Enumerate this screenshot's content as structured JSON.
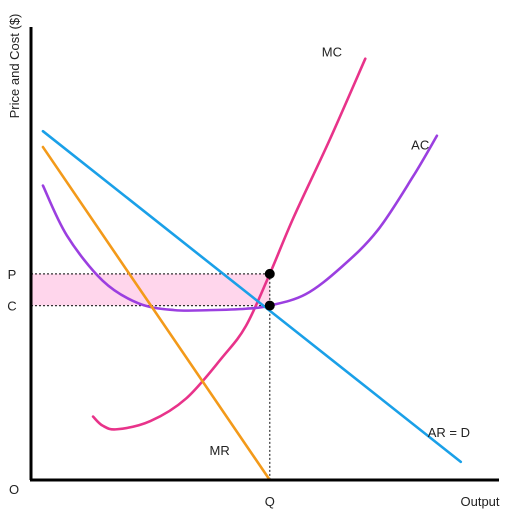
{
  "chart_data": {
    "type": "line",
    "title": "",
    "xlabel": "Output",
    "ylabel": "Price and Cost ($)",
    "origin_label": "O",
    "x_ticks": [
      {
        "value": 100,
        "label": "Q"
      }
    ],
    "y_ticks": [
      {
        "value": 45.5,
        "label": "P"
      },
      {
        "value": 38.5,
        "label": "C"
      }
    ],
    "xlim": [
      0,
      196
    ],
    "ylim": [
      0,
      100
    ],
    "grid": false,
    "series": [
      {
        "name": "MC",
        "color": "#e8338a",
        "points": [
          [
            26,
            14
          ],
          [
            30,
            12
          ],
          [
            36,
            11.2
          ],
          [
            50,
            13
          ],
          [
            65,
            18
          ],
          [
            80,
            27
          ],
          [
            90,
            34
          ],
          [
            100,
            45.5
          ],
          [
            110,
            58
          ],
          [
            125,
            75
          ],
          [
            140,
            93
          ]
        ]
      },
      {
        "name": "AC",
        "color": "#9b3fe0",
        "points": [
          [
            5,
            65
          ],
          [
            15,
            54
          ],
          [
            30,
            44
          ],
          [
            45,
            39
          ],
          [
            60,
            37.5
          ],
          [
            75,
            37.5
          ],
          [
            90,
            37.8
          ],
          [
            100,
            38.5
          ],
          [
            115,
            41
          ],
          [
            130,
            47
          ],
          [
            145,
            55
          ],
          [
            160,
            67
          ],
          [
            170,
            76
          ]
        ]
      },
      {
        "name": "AR = D",
        "color": "#1aa0e8",
        "points": [
          [
            5,
            77
          ],
          [
            180,
            4
          ]
        ]
      },
      {
        "name": "MR",
        "color": "#f39a1a",
        "points": [
          [
            5,
            73.5
          ],
          [
            100,
            0
          ]
        ]
      }
    ],
    "equilibrium_points": [
      {
        "x": 100,
        "y": 45.5
      },
      {
        "x": 100,
        "y": 38.5
      }
    ],
    "profit_region": {
      "x": [
        0,
        100
      ],
      "y": [
        38.5,
        45.5
      ],
      "color": "#ffd6ec"
    }
  }
}
